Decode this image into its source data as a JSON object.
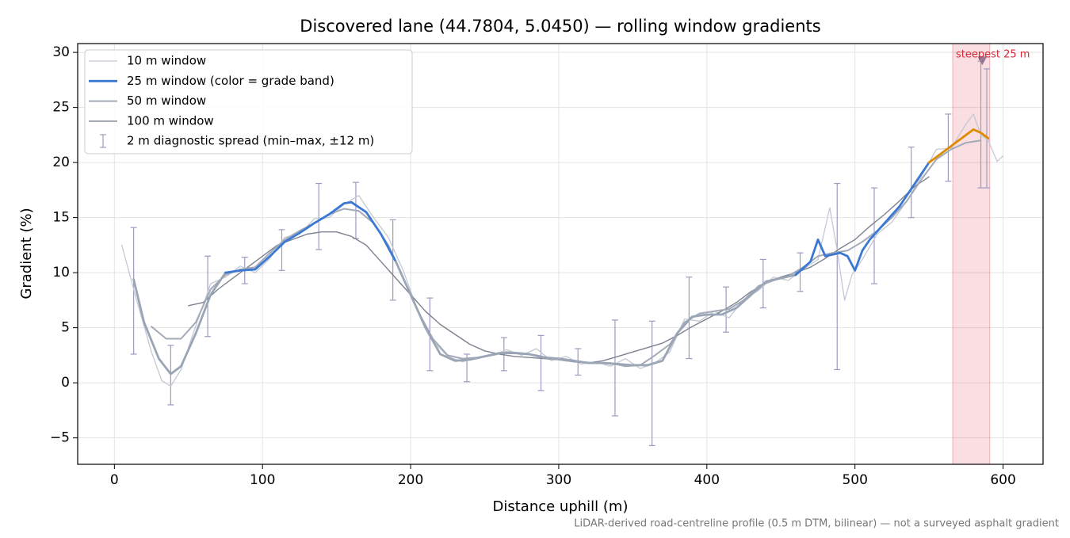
{
  "chart_data": {
    "type": "line",
    "title": "Discovered lane (44.7804, 5.0450) — rolling window gradients",
    "x_label": "Distance uphill (m)",
    "y_label": "Gradient (%)",
    "footnote": "LiDAR-derived road-centreline profile (0.5 m DTM, bilinear) — not a surveyed asphalt gradient",
    "xlim": [
      -24.8,
      627
    ],
    "ylim": [
      -7.4,
      30.8
    ],
    "xticks": [
      0,
      100,
      200,
      300,
      400,
      500,
      600
    ],
    "yticks": [
      {
        "value": -5,
        "label": "−5"
      },
      0,
      5,
      10,
      15,
      20,
      25,
      30
    ],
    "grid": true,
    "legend": "upper left",
    "series": [
      {
        "name": "10 m window",
        "color": "#c3c9d3",
        "width": 1.3,
        "x": [
          5,
          15,
          25,
          32,
          38,
          45,
          55,
          65,
          75,
          85,
          95,
          105,
          115,
          125,
          135,
          145,
          155,
          165,
          175,
          185,
          195,
          205,
          215,
          225,
          235,
          245,
          255,
          265,
          275,
          285,
          295,
          305,
          315,
          325,
          335,
          345,
          355,
          365,
          375,
          385,
          395,
          405,
          415,
          425,
          435,
          445,
          455,
          465,
          475,
          483,
          488,
          493,
          498,
          505,
          515,
          525,
          535,
          545,
          555,
          565,
          575,
          580,
          585,
          590,
          596,
          600
        ],
        "values": [
          12.5,
          7.5,
          2.8,
          0.2,
          -0.3,
          1.2,
          5.2,
          9.0,
          9.6,
          10.6,
          10.0,
          11.3,
          13.2,
          13.5,
          14.9,
          15.0,
          16.2,
          17.0,
          15.0,
          13.2,
          10.2,
          6.5,
          3.8,
          2.4,
          1.9,
          2.3,
          2.5,
          3.0,
          2.5,
          3.1,
          2.0,
          2.4,
          1.7,
          1.9,
          1.5,
          2.2,
          1.3,
          1.8,
          2.8,
          5.8,
          5.6,
          6.5,
          5.9,
          7.6,
          8.4,
          9.6,
          9.3,
          10.3,
          11.2,
          15.9,
          12.0,
          7.5,
          9.8,
          11.2,
          13.5,
          14.6,
          16.5,
          18.8,
          21.2,
          21.3,
          23.5,
          24.4,
          22.5,
          22.0,
          20.1,
          20.6
        ]
      },
      {
        "name": "25 m window (color = grade band)",
        "color": "#3a78d4",
        "width": 2.8,
        "band_colors": [
          {
            "below": 10,
            "color": "#9aa5b5"
          },
          {
            "below": 20,
            "color": "#3a78d4"
          },
          {
            "color": "#e08a00"
          }
        ],
        "x": [
          13,
          20,
          30,
          38,
          45,
          55,
          65,
          75,
          85,
          95,
          105,
          115,
          125,
          135,
          145,
          155,
          160,
          170,
          180,
          190,
          200,
          210,
          220,
          230,
          240,
          250,
          260,
          270,
          280,
          290,
          300,
          310,
          320,
          330,
          340,
          350,
          360,
          370,
          380,
          390,
          400,
          410,
          420,
          430,
          440,
          450,
          460,
          470,
          475,
          480,
          490,
          495,
          500,
          505,
          510,
          520,
          530,
          540,
          550,
          560,
          570,
          580,
          585,
          590
        ],
        "values": [
          9.4,
          5.5,
          2.2,
          0.8,
          1.5,
          4.5,
          8.0,
          10.0,
          10.2,
          10.3,
          11.5,
          12.8,
          13.6,
          14.5,
          15.3,
          16.3,
          16.4,
          15.5,
          13.5,
          11.0,
          8.0,
          5.0,
          2.6,
          2.0,
          2.1,
          2.4,
          2.7,
          2.7,
          2.6,
          2.3,
          2.2,
          2.0,
          1.8,
          1.8,
          1.7,
          1.6,
          1.6,
          2.0,
          4.5,
          6.0,
          6.2,
          6.2,
          6.8,
          8.0,
          9.2,
          9.5,
          9.8,
          11.0,
          13.0,
          11.5,
          11.8,
          11.5,
          10.2,
          12.0,
          13.0,
          14.5,
          16.0,
          18.0,
          20.0,
          21.0,
          22.0,
          23.0,
          22.7,
          22.2
        ]
      },
      {
        "name": "50 m window",
        "color": "#a3abb8",
        "width": 2.0,
        "x": [
          25,
          35,
          45,
          55,
          65,
          75,
          85,
          95,
          105,
          115,
          125,
          135,
          145,
          155,
          165,
          175,
          185,
          195,
          205,
          215,
          225,
          235,
          245,
          255,
          265,
          275,
          285,
          295,
          305,
          315,
          325,
          335,
          345,
          355,
          365,
          375,
          385,
          395,
          405,
          415,
          425,
          435,
          445,
          455,
          465,
          475,
          485,
          495,
          505,
          515,
          525,
          535,
          545,
          555,
          565,
          575,
          585
        ],
        "values": [
          5.1,
          4.0,
          4.0,
          5.5,
          8.5,
          9.8,
          10.3,
          10.5,
          11.8,
          13.0,
          13.8,
          14.5,
          15.3,
          15.8,
          15.6,
          14.5,
          12.5,
          9.5,
          6.5,
          4.0,
          2.5,
          2.2,
          2.3,
          2.5,
          2.8,
          2.7,
          2.5,
          2.2,
          2.0,
          1.9,
          1.8,
          1.8,
          1.5,
          1.6,
          2.5,
          3.5,
          5.5,
          6.3,
          6.5,
          6.7,
          7.5,
          8.8,
          9.3,
          9.7,
          10.5,
          11.5,
          11.8,
          12.0,
          12.8,
          13.8,
          15.0,
          16.5,
          18.5,
          20.3,
          21.2,
          21.8,
          22.0
        ]
      },
      {
        "name": "100 m window",
        "color": "#7d8290",
        "width": 1.4,
        "x": [
          50,
          60,
          70,
          80,
          90,
          100,
          110,
          120,
          130,
          140,
          150,
          160,
          170,
          180,
          190,
          200,
          210,
          220,
          230,
          240,
          250,
          260,
          270,
          280,
          290,
          300,
          310,
          320,
          330,
          340,
          350,
          360,
          370,
          380,
          390,
          400,
          410,
          420,
          430,
          440,
          450,
          460,
          470,
          480,
          490,
          500,
          510,
          520,
          530,
          540,
          550
        ],
        "values": [
          7.0,
          7.3,
          8.5,
          9.5,
          10.5,
          11.5,
          12.5,
          13.0,
          13.5,
          13.7,
          13.7,
          13.3,
          12.5,
          11.0,
          9.5,
          8.0,
          6.5,
          5.3,
          4.4,
          3.5,
          2.9,
          2.6,
          2.4,
          2.3,
          2.2,
          2.1,
          1.9,
          1.8,
          2.0,
          2.4,
          2.8,
          3.2,
          3.6,
          4.3,
          5.1,
          5.8,
          6.5,
          7.3,
          8.3,
          9.1,
          9.6,
          10.0,
          10.5,
          11.3,
          12.2,
          13.0,
          14.2,
          15.3,
          16.5,
          17.8,
          18.7
        ]
      }
    ],
    "errorbars": {
      "name": "2 m diagnostic spread (min–max, ±12 m)",
      "color": "#9e9ac0",
      "x": [
        13,
        38,
        63,
        88,
        113,
        138,
        163,
        188,
        213,
        238,
        263,
        288,
        313,
        338,
        363,
        388,
        413,
        438,
        463,
        488,
        513,
        538,
        563,
        585,
        589
      ],
      "low": [
        2.6,
        -2.0,
        4.2,
        9.0,
        10.2,
        12.1,
        13.1,
        7.5,
        1.1,
        0.1,
        1.1,
        -0.7,
        0.7,
        -3.0,
        -5.7,
        2.2,
        4.6,
        6.8,
        8.3,
        1.2,
        9.0,
        15.0,
        18.3,
        17.7,
        17.7
      ],
      "high": [
        14.1,
        3.4,
        11.5,
        11.4,
        13.9,
        18.1,
        18.2,
        14.8,
        7.7,
        2.6,
        4.1,
        4.3,
        3.1,
        5.7,
        5.6,
        9.6,
        8.7,
        11.2,
        11.8,
        18.1,
        17.7,
        21.4,
        24.4,
        29.2,
        28.5
      ]
    },
    "steepest": {
      "label": "steepest 25 m",
      "x_range": [
        566,
        591
      ],
      "marker_x": 586,
      "marker_y": 29.2,
      "color": "#d62838"
    }
  }
}
